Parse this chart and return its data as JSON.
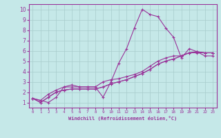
{
  "xlabel": "Windchill (Refroidissement éolien,°C)",
  "ylabel": "",
  "bg_color": "#c5e8e8",
  "line_color": "#993399",
  "grid_color": "#a8cccc",
  "xlim": [
    -0.5,
    23.5
  ],
  "ylim": [
    0.5,
    10.5
  ],
  "xticks": [
    0,
    1,
    2,
    3,
    4,
    5,
    6,
    7,
    8,
    9,
    10,
    11,
    12,
    13,
    14,
    15,
    16,
    17,
    18,
    19,
    20,
    21,
    22,
    23
  ],
  "yticks": [
    1,
    2,
    3,
    4,
    5,
    6,
    7,
    8,
    9,
    10
  ],
  "series": [
    [
      1.4,
      1.2,
      1.0,
      1.5,
      2.5,
      2.7,
      2.5,
      2.5,
      2.5,
      1.5,
      3.0,
      4.8,
      6.2,
      8.2,
      10.0,
      9.5,
      9.3,
      8.2,
      7.3,
      5.3,
      6.2,
      5.9,
      5.5,
      5.5
    ],
    [
      1.4,
      1.2,
      1.8,
      2.2,
      2.5,
      2.5,
      2.5,
      2.5,
      2.5,
      3.0,
      3.2,
      3.3,
      3.5,
      3.7,
      4.0,
      4.5,
      5.0,
      5.3,
      5.5,
      5.5,
      5.8,
      5.8,
      5.8,
      5.8
    ],
    [
      1.4,
      1.0,
      1.5,
      2.0,
      2.2,
      2.3,
      2.3,
      2.3,
      2.3,
      2.5,
      2.8,
      3.0,
      3.2,
      3.5,
      3.8,
      4.2,
      4.7,
      5.0,
      5.2,
      5.5,
      5.8,
      5.9,
      5.8,
      5.8
    ],
    [
      1.4,
      1.0,
      1.5,
      2.0,
      2.2,
      2.3,
      2.3,
      2.3,
      2.3,
      2.5,
      2.8,
      3.0,
      3.2,
      3.5,
      3.8,
      4.2,
      4.7,
      5.0,
      5.2,
      5.5,
      5.8,
      5.9,
      5.8,
      5.8
    ]
  ]
}
